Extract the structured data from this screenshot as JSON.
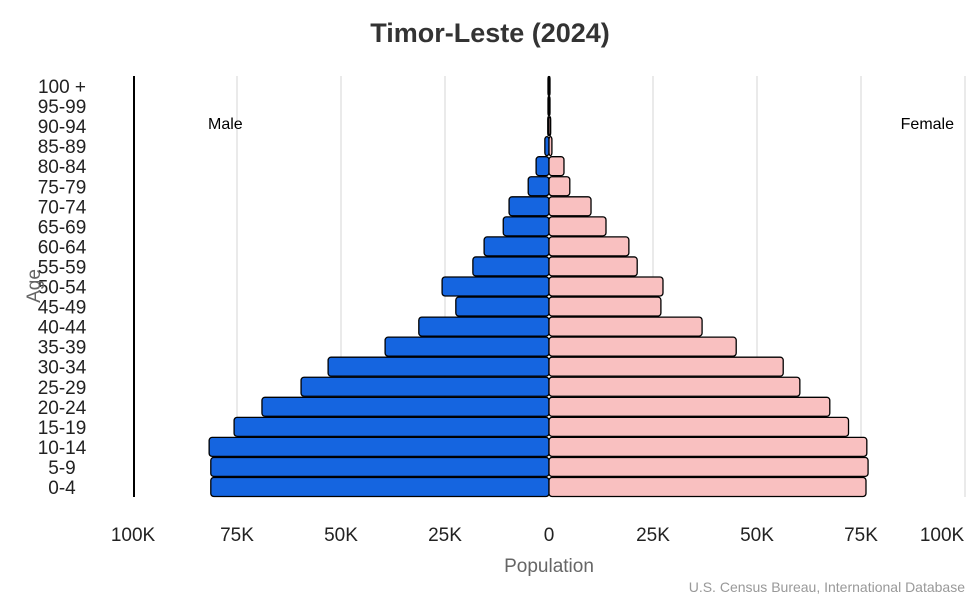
{
  "chart_data": {
    "type": "bar",
    "orientation": "horizontal",
    "subtype": "population-pyramid",
    "title": "Timor-Leste (2024)",
    "xlabel": "Population",
    "ylabel": "Age",
    "source": "U.S. Census Bureau, International Database",
    "xlim": [
      -100000,
      100000
    ],
    "x_tick_labels": [
      "100K",
      "75K",
      "50K",
      "25K",
      "0",
      "25K",
      "50K",
      "75K",
      "100K"
    ],
    "x_tick_values": [
      -100000,
      -75000,
      -50000,
      -25000,
      0,
      25000,
      50000,
      75000,
      100000
    ],
    "grid": "vertical",
    "categories": [
      "100 +",
      "95-99",
      "90-94",
      "85-89",
      "80-84",
      "75-79",
      "70-74",
      "65-69",
      "60-64",
      "55-59",
      "50-54",
      "45-49",
      "40-44",
      "35-39",
      "30-34",
      "25-29",
      "20-24",
      "15-19",
      "10-14",
      "5-9",
      "0-4"
    ],
    "series": [
      {
        "name": "Male",
        "color": "#1565e0",
        "label_position": "top-left",
        "values": [
          50,
          100,
          300,
          1000,
          3100,
          5000,
          9600,
          11000,
          15600,
          18300,
          25700,
          22400,
          31300,
          39400,
          53100,
          59600,
          69000,
          75700,
          81700,
          81300,
          81300
        ]
      },
      {
        "name": "Female",
        "color": "#f9c0c0",
        "label_position": "top-right",
        "values": [
          50,
          150,
          400,
          700,
          3600,
          5000,
          10100,
          13700,
          19200,
          21200,
          27400,
          26900,
          36800,
          45000,
          56300,
          60300,
          67500,
          72000,
          76400,
          76700,
          76200
        ]
      }
    ]
  }
}
